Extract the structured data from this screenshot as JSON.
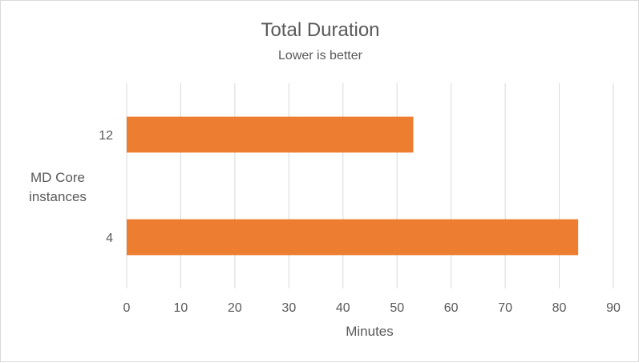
{
  "chart_data": {
    "type": "bar",
    "orientation": "horizontal",
    "title": "Total Duration",
    "subtitle": "Lower is better",
    "xlabel": "Minutes",
    "ylabel_lines": [
      "MD Core",
      "instances"
    ],
    "categories": [
      "12",
      "4"
    ],
    "values": [
      53,
      83.5
    ],
    "xlim": [
      0,
      90
    ],
    "xticks": [
      0,
      10,
      20,
      30,
      40,
      50,
      60,
      70,
      80,
      90
    ],
    "grid": true,
    "legend": "none",
    "bar_color": "#ED7D31"
  }
}
